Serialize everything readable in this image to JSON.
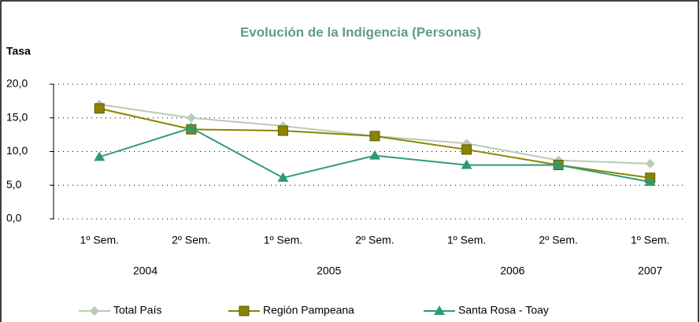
{
  "chart_data": {
    "type": "line",
    "title": "Evolución de la Indigencia (Personas)",
    "y_label": "Tasa",
    "categories": [
      "1º Sem.",
      "2º Sem.",
      "1º Sem.",
      "2º Sem.",
      "1º Sem.",
      "2º Sem.",
      "1º Sem."
    ],
    "category_groups": [
      "2004",
      "2005",
      "2006",
      "2007"
    ],
    "series": [
      {
        "name": "Total País",
        "color": "#b9ccb2",
        "marker": "diamond",
        "values": [
          17.0,
          15.0,
          13.8,
          12.3,
          11.2,
          8.7,
          8.2
        ]
      },
      {
        "name": "Región Pampeana",
        "color": "#8c8400",
        "marker": "square",
        "values": [
          16.4,
          13.3,
          13.1,
          12.3,
          10.3,
          8.0,
          6.1
        ]
      },
      {
        "name": "Santa Rosa - Toay",
        "color": "#2f9a72",
        "marker": "triangle",
        "values": [
          9.2,
          13.5,
          6.1,
          9.4,
          8.0,
          8.0,
          5.5
        ]
      }
    ],
    "ylim": [
      0,
      20
    ],
    "yticks": [
      {
        "value": 0,
        "label": "0,0"
      },
      {
        "value": 5,
        "label": "5,0"
      },
      {
        "value": 10,
        "label": "10,0"
      },
      {
        "value": 15,
        "label": "15,0"
      },
      {
        "value": 20,
        "label": "20,0"
      }
    ],
    "grid": true,
    "legend": "bottom"
  }
}
